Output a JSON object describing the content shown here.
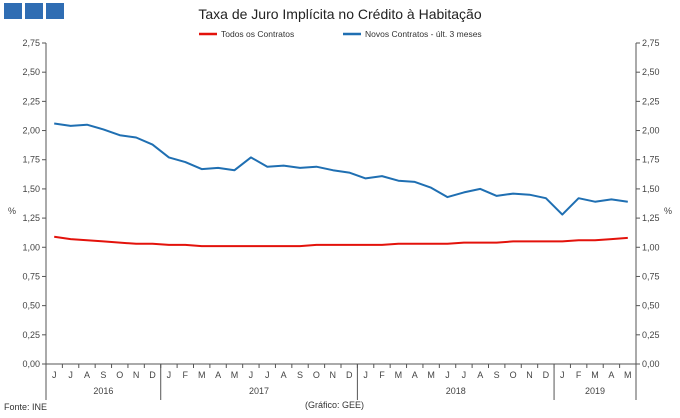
{
  "header": {
    "logo_color": "#2f6db3",
    "logo_blocks": [
      "logo-block-1",
      "logo-block-2",
      "logo-block-3"
    ]
  },
  "chart_data": {
    "type": "line",
    "title": "Taxa de Juro Implícita no Crédito à Habitação",
    "ylabel_left": "%",
    "ylabel_right": "%",
    "ylim": [
      0,
      2.75
    ],
    "yticks": [
      "0,00",
      "0,25",
      "0,50",
      "0,75",
      "1,00",
      "1,25",
      "1,50",
      "1,75",
      "2,00",
      "2,25",
      "2,50",
      "2,75"
    ],
    "categories": [
      "J",
      "J",
      "A",
      "S",
      "O",
      "N",
      "D",
      "J",
      "F",
      "M",
      "A",
      "M",
      "J",
      "J",
      "A",
      "S",
      "O",
      "N",
      "D",
      "J",
      "F",
      "M",
      "A",
      "M",
      "J",
      "J",
      "A",
      "S",
      "O",
      "N",
      "D",
      "J",
      "F",
      "M",
      "A",
      "M"
    ],
    "years": [
      {
        "label": "2016",
        "start": 0,
        "count": 7
      },
      {
        "label": "2017",
        "start": 7,
        "count": 12
      },
      {
        "label": "2018",
        "start": 19,
        "count": 12
      },
      {
        "label": "2019",
        "start": 31,
        "count": 5
      }
    ],
    "series": [
      {
        "name": "Todos os Contratos",
        "color": "#e3120b",
        "values": [
          1.09,
          1.07,
          1.06,
          1.05,
          1.04,
          1.03,
          1.03,
          1.02,
          1.02,
          1.01,
          1.01,
          1.01,
          1.01,
          1.01,
          1.01,
          1.01,
          1.02,
          1.02,
          1.02,
          1.02,
          1.02,
          1.03,
          1.03,
          1.03,
          1.03,
          1.04,
          1.04,
          1.04,
          1.05,
          1.05,
          1.05,
          1.05,
          1.06,
          1.06,
          1.07,
          1.08
        ]
      },
      {
        "name": "Novos Contratos - últ. 3 meses",
        "color": "#1f6fb2",
        "values": [
          2.06,
          2.04,
          2.05,
          2.01,
          1.96,
          1.94,
          1.88,
          1.77,
          1.73,
          1.67,
          1.68,
          1.66,
          1.77,
          1.69,
          1.7,
          1.68,
          1.69,
          1.66,
          1.64,
          1.59,
          1.61,
          1.57,
          1.56,
          1.51,
          1.43,
          1.47,
          1.5,
          1.44,
          1.46,
          1.45,
          1.42,
          1.28,
          1.42,
          1.39,
          1.41,
          1.39
        ]
      }
    ]
  },
  "footer": {
    "source": "Fonte: INE",
    "credit": "(Gráfico: GEE)"
  }
}
